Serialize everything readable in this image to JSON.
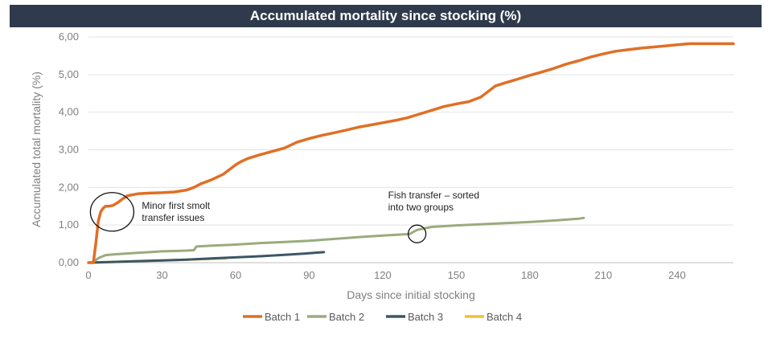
{
  "chart_data": {
    "type": "line",
    "title": "Accumulated mortality since stocking (%)",
    "xlabel": "Days since initial stocking",
    "ylabel": "Accumulated total mortality (%)",
    "xlim": [
      0,
      263
    ],
    "ylim": [
      0,
      6
    ],
    "x_ticks": [
      0,
      30,
      60,
      90,
      120,
      150,
      180,
      210,
      240
    ],
    "y_ticks": [
      0,
      1,
      2,
      3,
      4,
      5,
      6
    ],
    "y_tick_labels": [
      "0,00",
      "1,00",
      "2,00",
      "3,00",
      "4,00",
      "5,00",
      "6,00"
    ],
    "grid": "horizontal",
    "legend_position": "bottom",
    "series": [
      {
        "name": "Batch 1",
        "color": "#e06f25",
        "x": [
          0,
          2,
          3,
          4,
          5,
          6,
          7,
          8,
          10,
          12,
          14,
          16,
          20,
          25,
          30,
          35,
          40,
          43,
          46,
          50,
          55,
          58,
          60,
          62,
          65,
          70,
          75,
          80,
          85,
          90,
          95,
          100,
          105,
          110,
          115,
          120,
          125,
          130,
          135,
          140,
          145,
          150,
          155,
          160,
          163,
          166,
          170,
          175,
          180,
          185,
          190,
          195,
          200,
          205,
          210,
          215,
          220,
          225,
          230,
          235,
          240,
          245,
          250,
          255,
          263
        ],
        "y": [
          0,
          0,
          0.5,
          1.1,
          1.35,
          1.45,
          1.5,
          1.5,
          1.52,
          1.6,
          1.7,
          1.78,
          1.83,
          1.85,
          1.86,
          1.88,
          1.93,
          2.0,
          2.1,
          2.2,
          2.35,
          2.5,
          2.6,
          2.68,
          2.77,
          2.87,
          2.96,
          3.05,
          3.2,
          3.3,
          3.38,
          3.45,
          3.52,
          3.6,
          3.66,
          3.72,
          3.78,
          3.85,
          3.95,
          4.05,
          4.15,
          4.22,
          4.28,
          4.4,
          4.55,
          4.7,
          4.78,
          4.88,
          4.98,
          5.07,
          5.17,
          5.28,
          5.37,
          5.47,
          5.55,
          5.62,
          5.66,
          5.7,
          5.73,
          5.76,
          5.79,
          5.82,
          5.82,
          5.82,
          5.82
        ]
      },
      {
        "name": "Batch 2",
        "color": "#9aab7d",
        "x": [
          0,
          2,
          4,
          7,
          10,
          15,
          20,
          25,
          30,
          35,
          40,
          43,
          44,
          50,
          60,
          70,
          80,
          90,
          100,
          110,
          120,
          128,
          131,
          132,
          134,
          136,
          140,
          150,
          160,
          170,
          180,
          190,
          200,
          202
        ],
        "y": [
          0,
          0.02,
          0.12,
          0.2,
          0.22,
          0.24,
          0.26,
          0.28,
          0.3,
          0.31,
          0.32,
          0.33,
          0.43,
          0.45,
          0.48,
          0.52,
          0.55,
          0.58,
          0.63,
          0.68,
          0.72,
          0.75,
          0.76,
          0.8,
          0.87,
          0.9,
          0.95,
          0.99,
          1.02,
          1.05,
          1.08,
          1.12,
          1.17,
          1.19
        ]
      },
      {
        "name": "Batch 3",
        "color": "#3c5664",
        "x": [
          0,
          10,
          20,
          30,
          40,
          50,
          60,
          70,
          80,
          90,
          96
        ],
        "y": [
          0,
          0.02,
          0.04,
          0.06,
          0.08,
          0.11,
          0.14,
          0.17,
          0.21,
          0.25,
          0.28
        ]
      },
      {
        "name": "Batch 4",
        "color": "#f2c12e",
        "x": [
          0,
          10,
          20,
          30,
          40,
          50,
          56
        ],
        "y": [
          0,
          0.02,
          0.04,
          0.06,
          0.08,
          0.1,
          0.11
        ]
      }
    ],
    "annotations": [
      {
        "lines": [
          "Minor first smolt",
          "transfer issues"
        ],
        "x": 8,
        "y": 1.35
      },
      {
        "lines": [
          "Fish transfer – sorted",
          "into two groups"
        ],
        "x": 134,
        "y": 0.85
      }
    ]
  }
}
